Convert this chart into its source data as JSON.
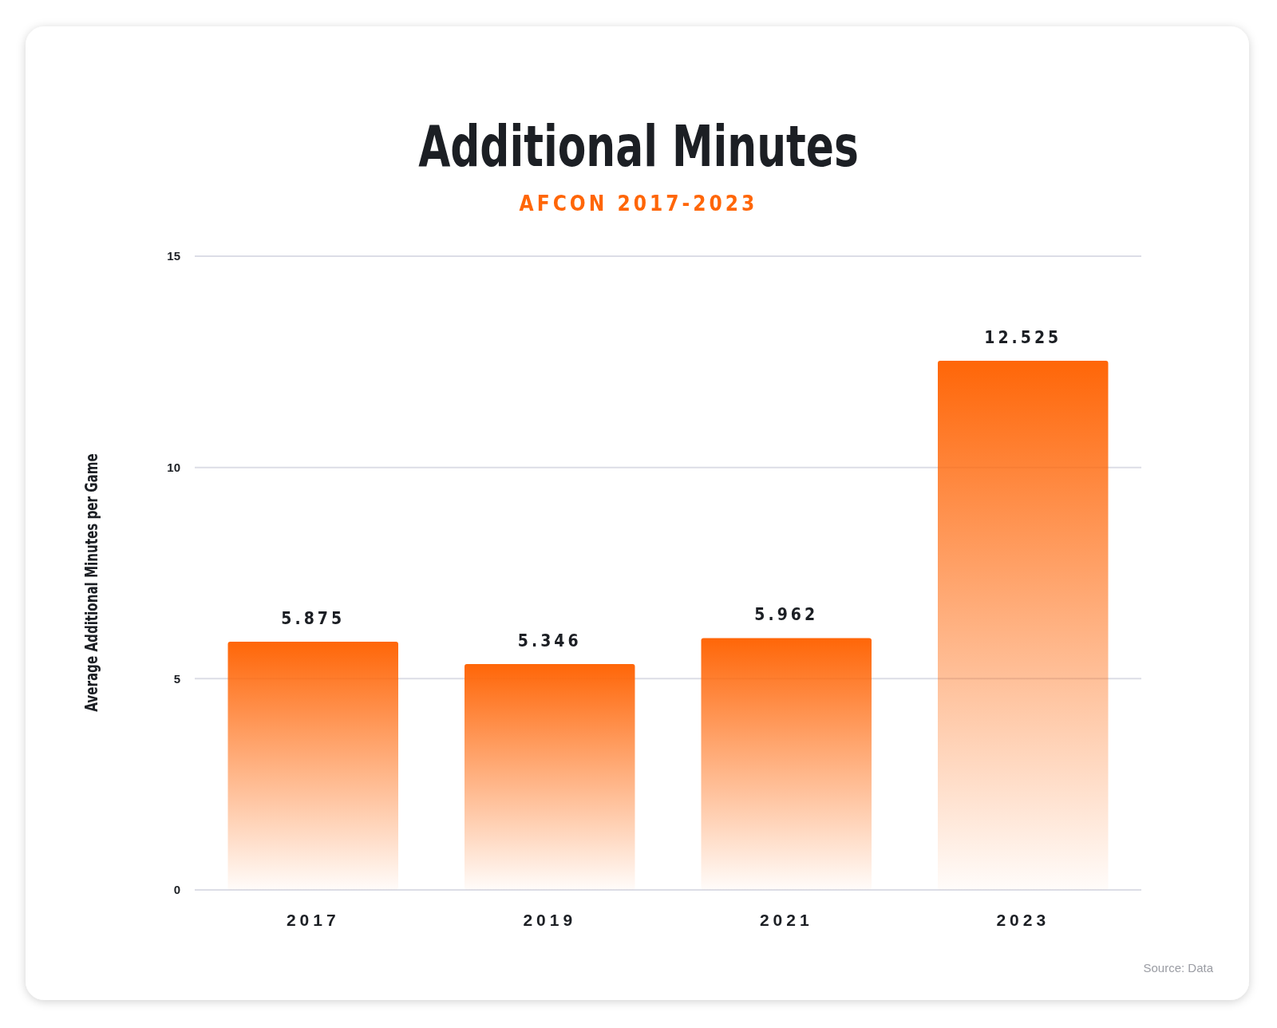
{
  "chart_data": {
    "type": "bar",
    "title": "Additional Minutes",
    "subtitle": "AFCON 2017-2023",
    "ylabel": "Average Additional Minutes per Game",
    "categories": [
      "2017",
      "2019",
      "2021",
      "2023"
    ],
    "values": [
      5.875,
      5.346,
      5.962,
      12.525
    ],
    "color": "#ff6608",
    "ylim": [
      0,
      15
    ],
    "yticks": [
      0,
      5,
      10,
      15
    ],
    "grid": "y",
    "data_labels": true,
    "annotations": [
      "Source: Data"
    ]
  }
}
